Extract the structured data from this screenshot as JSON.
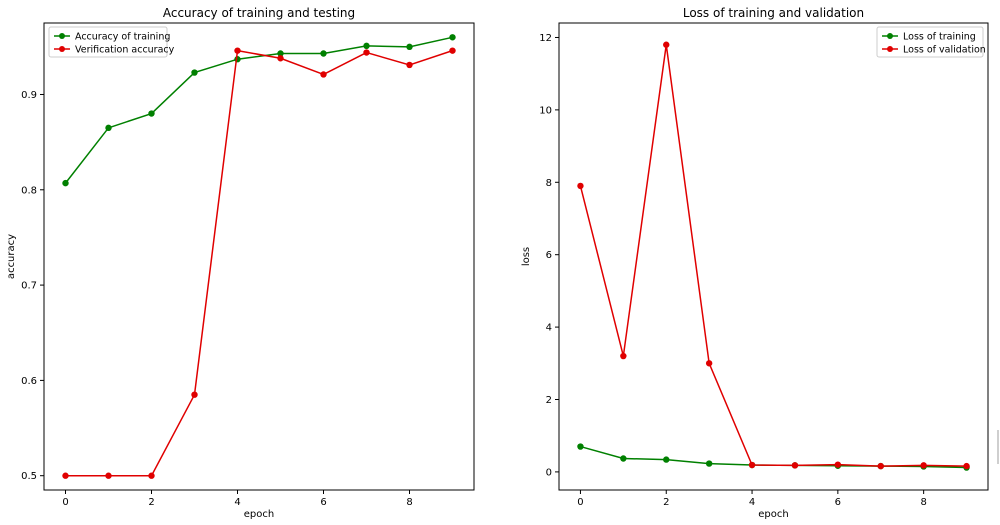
{
  "chart_data": [
    {
      "type": "line",
      "title": "Accuracy of training and testing",
      "xlabel": "epoch",
      "ylabel": "accuracy",
      "xlim": [
        -0.5,
        9.5
      ],
      "ylim": [
        0.485,
        0.975
      ],
      "x_ticks": [
        0,
        2,
        4,
        6,
        8
      ],
      "y_ticks": [
        0.5,
        0.6,
        0.7,
        0.8,
        0.9
      ],
      "legend_position": "top-left",
      "x": [
        0,
        1,
        2,
        3,
        4,
        5,
        6,
        7,
        8,
        9
      ],
      "series": [
        {
          "name": "Accuracy of training",
          "color": "#008000",
          "values": [
            0.807,
            0.865,
            0.88,
            0.923,
            0.937,
            0.943,
            0.943,
            0.951,
            0.95,
            0.96
          ]
        },
        {
          "name": "Verification accuracy",
          "color": "#e00000",
          "values": [
            0.5,
            0.5,
            0.5,
            0.585,
            0.946,
            0.938,
            0.921,
            0.944,
            0.931,
            0.946
          ]
        }
      ]
    },
    {
      "type": "line",
      "title": "Loss of training and validation",
      "xlabel": "epoch",
      "ylabel": "loss",
      "xlim": [
        -0.5,
        9.5
      ],
      "ylim": [
        -0.5,
        12.4
      ],
      "x_ticks": [
        0,
        2,
        4,
        6,
        8
      ],
      "y_ticks": [
        0,
        2,
        4,
        6,
        8,
        10,
        12
      ],
      "legend_position": "top-right",
      "x": [
        0,
        1,
        2,
        3,
        4,
        5,
        6,
        7,
        8,
        9
      ],
      "series": [
        {
          "name": "Loss of training",
          "color": "#008000",
          "values": [
            0.7,
            0.37,
            0.34,
            0.23,
            0.19,
            0.18,
            0.17,
            0.16,
            0.15,
            0.12
          ]
        },
        {
          "name": "Loss of validation",
          "color": "#e00000",
          "values": [
            7.9,
            3.2,
            11.8,
            3.0,
            0.19,
            0.18,
            0.2,
            0.16,
            0.18,
            0.16
          ]
        }
      ]
    }
  ]
}
